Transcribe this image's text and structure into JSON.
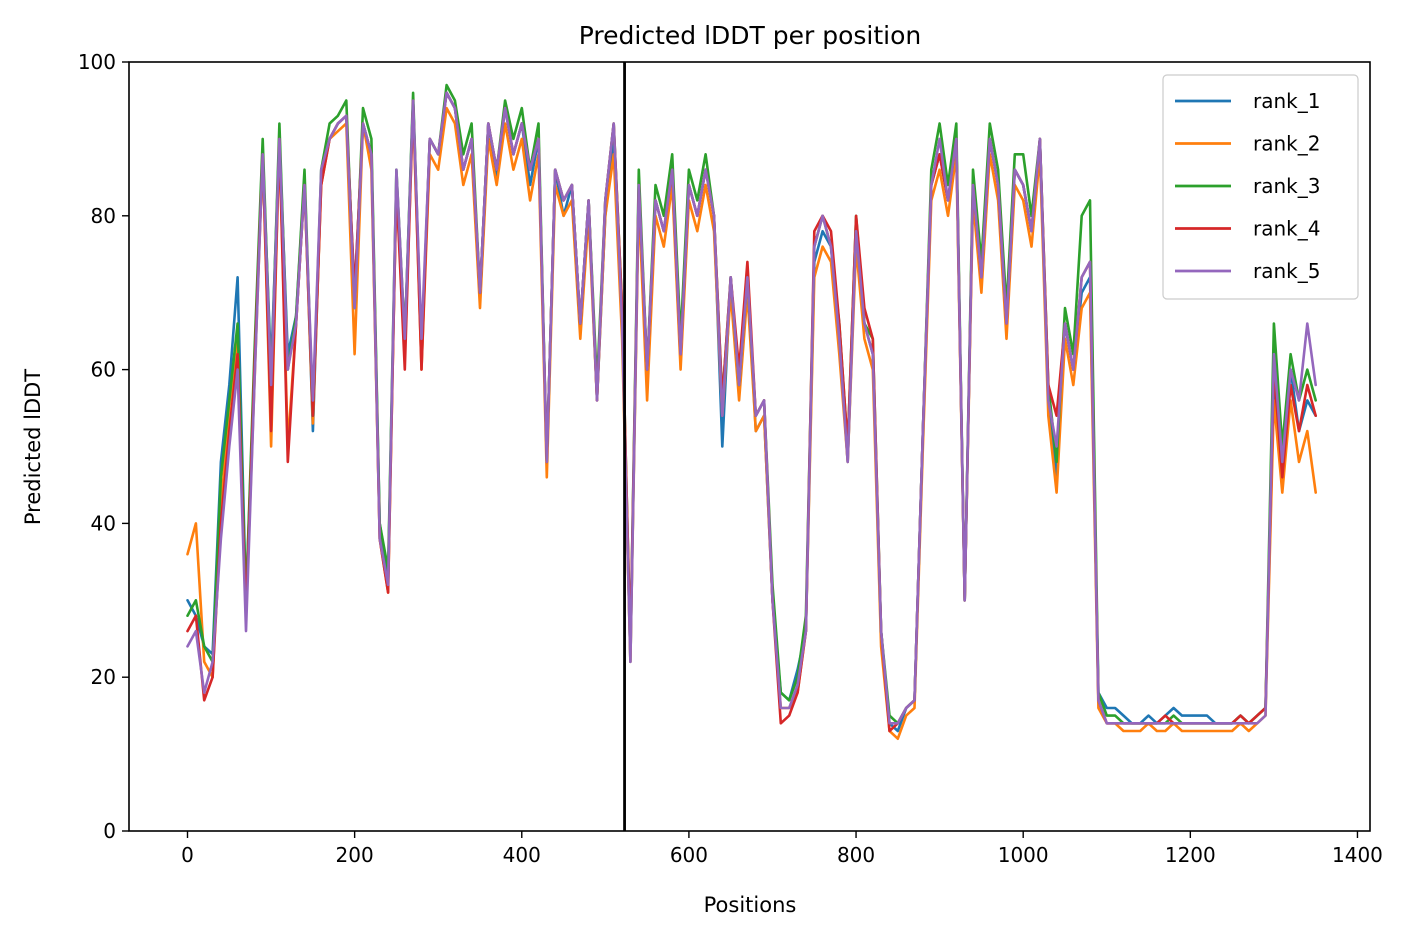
{
  "chart_data": {
    "type": "line",
    "title": "Predicted lDDT per position",
    "xlabel": "Positions",
    "ylabel": "Predicted lDDT",
    "xlim": [
      -70,
      1415
    ],
    "ylim": [
      0,
      100
    ],
    "xticks": [
      0,
      200,
      400,
      600,
      800,
      1000,
      1200,
      1400
    ],
    "yticks": [
      0,
      20,
      40,
      60,
      80,
      100
    ],
    "grid": false,
    "legend_position": "top-right",
    "vline": {
      "x": 523,
      "color": "#000000"
    },
    "x": [
      0,
      10,
      20,
      30,
      40,
      50,
      60,
      70,
      80,
      90,
      100,
      110,
      120,
      130,
      140,
      150,
      160,
      170,
      180,
      190,
      200,
      210,
      220,
      230,
      240,
      250,
      260,
      270,
      280,
      290,
      300,
      310,
      320,
      330,
      340,
      350,
      360,
      370,
      380,
      390,
      400,
      410,
      420,
      430,
      440,
      450,
      460,
      470,
      480,
      490,
      500,
      510,
      520,
      530,
      540,
      550,
      560,
      570,
      580,
      590,
      600,
      610,
      620,
      630,
      640,
      650,
      660,
      670,
      680,
      690,
      700,
      710,
      720,
      730,
      740,
      750,
      760,
      770,
      780,
      790,
      800,
      810,
      820,
      830,
      840,
      850,
      860,
      870,
      880,
      890,
      900,
      910,
      920,
      930,
      940,
      950,
      960,
      970,
      980,
      990,
      1000,
      1010,
      1020,
      1030,
      1040,
      1050,
      1060,
      1070,
      1080,
      1090,
      1100,
      1110,
      1120,
      1130,
      1140,
      1150,
      1160,
      1170,
      1180,
      1190,
      1200,
      1210,
      1220,
      1230,
      1240,
      1250,
      1260,
      1270,
      1280,
      1290,
      1300,
      1310,
      1320,
      1330,
      1340,
      1350
    ],
    "series": [
      {
        "name": "rank_1",
        "color": "#1f77b4",
        "values": [
          30,
          28,
          24,
          23,
          48,
          58,
          72,
          30,
          60,
          88,
          60,
          90,
          62,
          67,
          85,
          52,
          85,
          90,
          92,
          93,
          70,
          92,
          88,
          40,
          33,
          84,
          64,
          95,
          62,
          90,
          88,
          96,
          94,
          86,
          90,
          70,
          92,
          85,
          94,
          88,
          92,
          84,
          90,
          48,
          86,
          80,
          84,
          66,
          82,
          56,
          80,
          90,
          66,
          22,
          84,
          60,
          82,
          78,
          86,
          62,
          84,
          80,
          86,
          80,
          50,
          72,
          58,
          72,
          52,
          54,
          30,
          18,
          17,
          21,
          26,
          74,
          78,
          76,
          64,
          48,
          78,
          66,
          62,
          26,
          14,
          13,
          16,
          17,
          52,
          84,
          88,
          82,
          90,
          30,
          84,
          72,
          90,
          84,
          66,
          86,
          84,
          78,
          90,
          56,
          46,
          66,
          60,
          70,
          72,
          18,
          16,
          16,
          15,
          14,
          14,
          15,
          14,
          15,
          16,
          15,
          15,
          15,
          15,
          14,
          14,
          14,
          15,
          14,
          15,
          16,
          58,
          46,
          60,
          52,
          56,
          54
        ]
      },
      {
        "name": "rank_2",
        "color": "#ff7f0e",
        "values": [
          36,
          40,
          22,
          20,
          42,
          55,
          64,
          28,
          58,
          88,
          50,
          90,
          50,
          66,
          84,
          53,
          84,
          90,
          91,
          92,
          62,
          92,
          86,
          38,
          31,
          84,
          62,
          94,
          60,
          88,
          86,
          94,
          92,
          84,
          88,
          68,
          90,
          84,
          92,
          86,
          90,
          82,
          88,
          46,
          84,
          80,
          82,
          64,
          80,
          56,
          80,
          88,
          64,
          22,
          82,
          56,
          80,
          76,
          84,
          60,
          82,
          78,
          84,
          78,
          54,
          70,
          56,
          70,
          52,
          54,
          30,
          16,
          16,
          18,
          26,
          72,
          76,
          74,
          62,
          48,
          76,
          64,
          60,
          24,
          13,
          12,
          15,
          16,
          50,
          82,
          86,
          80,
          88,
          30,
          82,
          70,
          88,
          82,
          64,
          84,
          82,
          76,
          88,
          54,
          44,
          64,
          58,
          68,
          70,
          16,
          14,
          14,
          13,
          13,
          13,
          14,
          13,
          13,
          14,
          13,
          13,
          13,
          13,
          13,
          13,
          13,
          14,
          13,
          14,
          15,
          56,
          44,
          56,
          48,
          52,
          44
        ]
      },
      {
        "name": "rank_3",
        "color": "#2ca02c",
        "values": [
          28,
          30,
          24,
          22,
          46,
          56,
          66,
          30,
          62,
          90,
          58,
          92,
          60,
          67,
          86,
          54,
          86,
          92,
          93,
          95,
          68,
          94,
          90,
          40,
          34,
          86,
          64,
          96,
          62,
          90,
          88,
          97,
          95,
          88,
          92,
          70,
          92,
          86,
          95,
          90,
          94,
          86,
          92,
          48,
          86,
          82,
          84,
          66,
          82,
          58,
          82,
          92,
          68,
          24,
          86,
          60,
          84,
          80,
          88,
          64,
          86,
          82,
          88,
          80,
          56,
          72,
          58,
          72,
          54,
          56,
          32,
          18,
          17,
          20,
          28,
          76,
          80,
          76,
          66,
          50,
          80,
          66,
          64,
          26,
          15,
          14,
          16,
          17,
          52,
          86,
          92,
          84,
          92,
          30,
          86,
          74,
          92,
          86,
          68,
          88,
          88,
          80,
          90,
          58,
          48,
          68,
          62,
          80,
          82,
          18,
          15,
          15,
          14,
          14,
          14,
          14,
          14,
          14,
          15,
          14,
          14,
          14,
          14,
          14,
          14,
          14,
          15,
          14,
          15,
          16,
          66,
          50,
          62,
          56,
          60,
          56
        ]
      },
      {
        "name": "rank_4",
        "color": "#d62728",
        "values": [
          26,
          28,
          17,
          20,
          40,
          52,
          62,
          28,
          60,
          88,
          52,
          90,
          48,
          66,
          84,
          54,
          84,
          90,
          92,
          93,
          70,
          92,
          88,
          38,
          31,
          84,
          60,
          95,
          60,
          90,
          88,
          96,
          94,
          86,
          90,
          70,
          92,
          86,
          94,
          88,
          92,
          86,
          90,
          48,
          86,
          82,
          84,
          66,
          82,
          56,
          82,
          92,
          68,
          24,
          84,
          60,
          82,
          78,
          86,
          62,
          84,
          80,
          86,
          80,
          56,
          72,
          60,
          74,
          54,
          56,
          30,
          14,
          15,
          18,
          26,
          78,
          80,
          78,
          66,
          50,
          80,
          68,
          64,
          26,
          13,
          14,
          16,
          17,
          52,
          84,
          88,
          82,
          90,
          30,
          84,
          72,
          90,
          84,
          66,
          86,
          84,
          78,
          90,
          58,
          54,
          66,
          60,
          72,
          74,
          17,
          14,
          14,
          14,
          14,
          14,
          14,
          14,
          15,
          14,
          14,
          14,
          14,
          14,
          14,
          14,
          14,
          15,
          14,
          15,
          16,
          60,
          46,
          58,
          52,
          58,
          54
        ]
      },
      {
        "name": "rank_5",
        "color": "#9467bd",
        "values": [
          24,
          26,
          18,
          22,
          38,
          50,
          60,
          26,
          58,
          88,
          58,
          90,
          60,
          66,
          84,
          56,
          86,
          90,
          92,
          93,
          68,
          92,
          88,
          38,
          32,
          86,
          64,
          95,
          64,
          90,
          88,
          96,
          94,
          86,
          90,
          70,
          92,
          86,
          94,
          88,
          92,
          86,
          90,
          48,
          86,
          82,
          84,
          66,
          82,
          56,
          82,
          92,
          66,
          22,
          84,
          60,
          82,
          78,
          86,
          62,
          84,
          80,
          86,
          80,
          54,
          72,
          58,
          72,
          54,
          56,
          30,
          16,
          16,
          19,
          26,
          76,
          80,
          76,
          64,
          48,
          78,
          66,
          62,
          26,
          14,
          14,
          16,
          17,
          52,
          84,
          90,
          82,
          90,
          30,
          84,
          72,
          90,
          84,
          66,
          86,
          84,
          78,
          90,
          56,
          50,
          66,
          60,
          72,
          74,
          17,
          14,
          14,
          14,
          14,
          14,
          14,
          14,
          14,
          14,
          14,
          14,
          14,
          14,
          14,
          14,
          14,
          14,
          14,
          14,
          15,
          62,
          48,
          60,
          56,
          66,
          58
        ]
      }
    ]
  }
}
